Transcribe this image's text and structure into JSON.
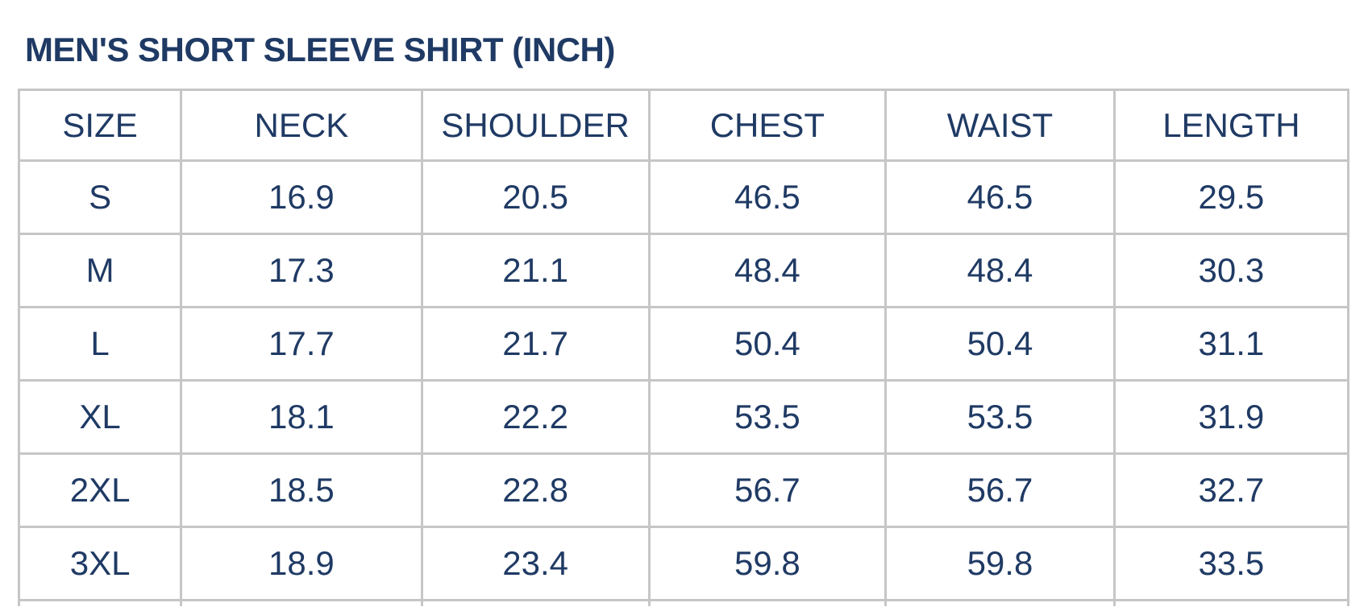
{
  "title": "MEN'S SHORT SLEEVE SHIRT (INCH)",
  "colors": {
    "text_navy": "#1f3a64",
    "table_border": "#c6c6c6",
    "background": "#ffffff"
  },
  "chart_data": {
    "type": "table",
    "title": "MEN'S SHORT SLEEVE SHIRT (INCH)",
    "unit": "INCH",
    "columns": [
      "SIZE",
      "NECK",
      "SHOULDER",
      "CHEST",
      "WAIST",
      "LENGTH"
    ],
    "rows": [
      [
        "S",
        "16.9",
        "20.5",
        "46.5",
        "46.5",
        "29.5"
      ],
      [
        "M",
        "17.3",
        "21.1",
        "48.4",
        "48.4",
        "30.3"
      ],
      [
        "L",
        "17.7",
        "21.7",
        "50.4",
        "50.4",
        "31.1"
      ],
      [
        "XL",
        "18.1",
        "22.2",
        "53.5",
        "53.5",
        "31.9"
      ],
      [
        "2XL",
        "18.5",
        "22.8",
        "56.7",
        "56.7",
        "32.7"
      ],
      [
        "3XL",
        "18.9",
        "23.4",
        "59.8",
        "59.8",
        "33.5"
      ]
    ]
  }
}
